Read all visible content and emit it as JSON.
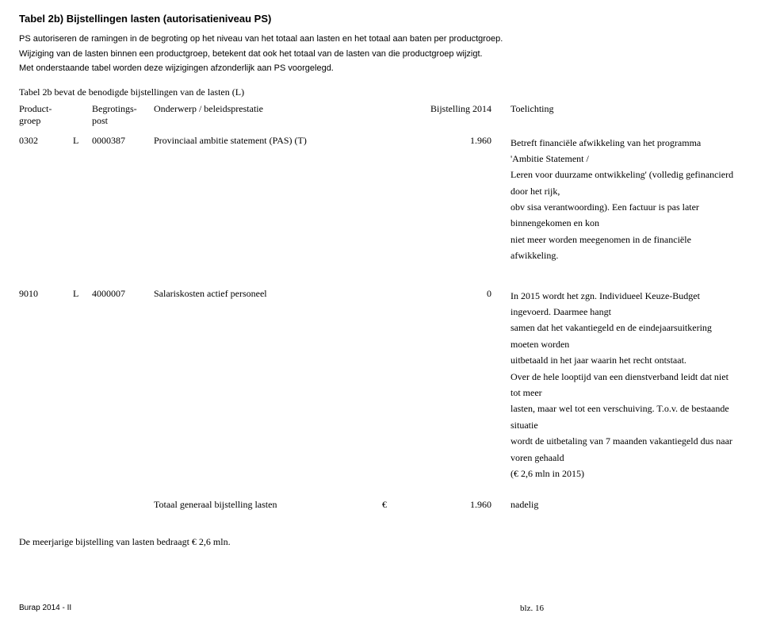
{
  "title": "Tabel 2b) Bijstellingen lasten (autorisatieniveau PS)",
  "intro": {
    "line1": "PS autoriseren de ramingen in de begroting op het niveau van het totaal aan lasten en het totaal aan baten per productgroep.",
    "line2": "Wijziging van de lasten binnen een productgroep, betekent dat ook het totaal van de lasten van die productgroep wijzigt.",
    "line3": "Met onderstaande tabel worden deze wijzigingen afzonderlijk aan PS voorgelegd."
  },
  "table_caption": "Tabel 2b bevat de benodigde bijstellingen van de lasten (L)",
  "headers": {
    "productgroep_l1": "Product-",
    "productgroep_l2": "groep",
    "begrotingspost_l1": "Begrotings-",
    "begrotingspost_l2": "post",
    "onderwerp": "Onderwerp / beleidsprestatie",
    "bijstelling": "Bijstelling 2014",
    "toelichting": "Toelichting"
  },
  "rows": [
    {
      "productgroep": "0302",
      "lb": "L",
      "post": "0000387",
      "onderwerp": "Provinciaal ambitie statement (PAS) (T)",
      "bijstelling": "1.960",
      "toelichting": [
        "Betreft financiële afwikkeling van het programma 'Ambitie Statement /",
        "Leren voor duurzame ontwikkeling' (volledig gefinancierd door het rijk,",
        "obv sisa verantwoording). Een factuur is pas later binnengekomen en kon",
        "niet meer worden meegenomen in de financiële afwikkeling."
      ]
    },
    {
      "productgroep": "9010",
      "lb": "L",
      "post": "4000007",
      "onderwerp": "Salariskosten actief personeel",
      "bijstelling": "0",
      "toelichting": [
        "In 2015 wordt het zgn. Individueel Keuze-Budget ingevoerd. Daarmee hangt",
        "samen dat het vakantiegeld en de eindejaarsuitkering moeten worden",
        "uitbetaald in het jaar waarin het recht ontstaat.",
        "Over de hele looptijd van een dienstverband leidt dat niet tot meer",
        "lasten, maar wel tot een verschuiving. T.o.v. de bestaande situatie",
        "wordt de uitbetaling van 7 maanden vakantiegeld dus naar voren gehaald",
        "(€ 2,6 mln in 2015)"
      ]
    }
  ],
  "total": {
    "label": "Totaal generaal bijstelling lasten",
    "currency": "€",
    "value": "1.960",
    "note": "nadelig"
  },
  "closing": "De meerjarige bijstelling van lasten bedraagt € 2,6 mln.",
  "footer_left": "Burap 2014 - II",
  "footer_right": "blz. 16"
}
